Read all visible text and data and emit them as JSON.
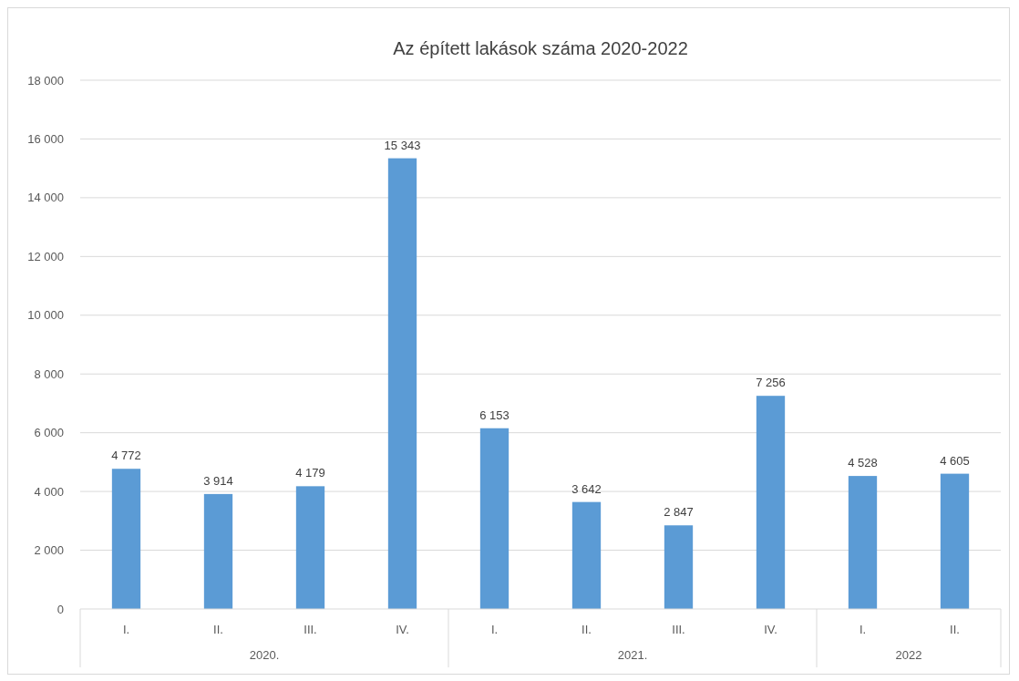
{
  "chart_data": {
    "type": "bar",
    "title": "Az épített lakások száma 2020-2022",
    "categories": [
      "I.",
      "II.",
      "III.",
      "IV.",
      "I.",
      "II.",
      "III.",
      "IV.",
      "I.",
      "II."
    ],
    "values": [
      4772,
      3914,
      4179,
      15343,
      6153,
      3642,
      2847,
      7256,
      4528,
      4605
    ],
    "color": "#5b9bd5",
    "ylim": [
      0,
      18000
    ],
    "yticks": [
      {
        "value": 0,
        "label": "0"
      },
      {
        "value": 2000,
        "label": "2 000"
      },
      {
        "value": 4000,
        "label": "4 000"
      },
      {
        "value": 6000,
        "label": "6 000"
      },
      {
        "value": 8000,
        "label": "8 000"
      },
      {
        "value": 10000,
        "label": "10 000"
      },
      {
        "value": 12000,
        "label": "12 000"
      },
      {
        "value": 14000,
        "label": "14 000"
      },
      {
        "value": 16000,
        "label": "16 000"
      },
      {
        "value": 18000,
        "label": "18 000"
      }
    ],
    "grid": "y",
    "data_labels": true,
    "annotations": [
      "2020.",
      "2021.",
      "2022"
    ]
  }
}
